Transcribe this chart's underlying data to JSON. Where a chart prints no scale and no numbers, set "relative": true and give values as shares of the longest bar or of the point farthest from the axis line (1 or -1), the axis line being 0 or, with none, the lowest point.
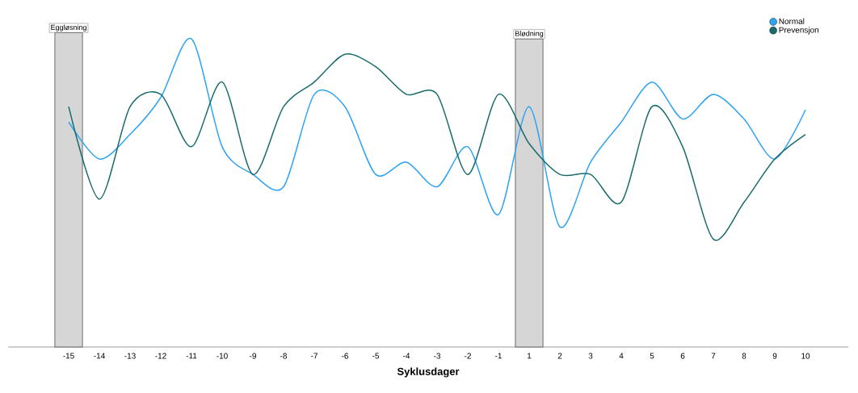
{
  "chart_data": {
    "type": "line",
    "relative": true,
    "xlabel": "Syklusdager",
    "categories": [
      "-15",
      "-14",
      "-13",
      "-12",
      "-11",
      "-10",
      "-9",
      "-8",
      "-7",
      "-6",
      "-5",
      "-4",
      "-3",
      "-2",
      "-1",
      "1",
      "2",
      "3",
      "4",
      "5",
      "6",
      "7",
      "8",
      "9",
      "10"
    ],
    "series": [
      {
        "name": "Normal",
        "color": "#2ea3f2",
        "values": [
          0.73,
          0.61,
          0.69,
          0.81,
          1,
          0.65,
          0.56,
          0.52,
          0.82,
          0.78,
          0.56,
          0.6,
          0.52,
          0.65,
          0.43,
          0.78,
          0.39,
          0.6,
          0.73,
          0.86,
          0.74,
          0.82,
          0.74,
          0.61,
          0.77
        ]
      },
      {
        "name": "Prevensjon",
        "color": "#1a6b6b",
        "values": [
          0.78,
          0.48,
          0.78,
          0.82,
          0.65,
          0.86,
          0.56,
          0.78,
          0.86,
          0.95,
          0.91,
          0.82,
          0.82,
          0.56,
          0.82,
          0.66,
          0.56,
          0.56,
          0.47,
          0.78,
          0.65,
          0.35,
          0.47,
          0.61,
          0.69
        ]
      }
    ],
    "bands": [
      {
        "axis": "x",
        "from": "-15",
        "to": "-15",
        "label": "Eggløsning",
        "color": "#d6d6d6"
      },
      {
        "axis": "x",
        "from": "1",
        "to": "1",
        "label": "Blødning",
        "color": "#d6d6d6"
      }
    ],
    "legend": "top right"
  }
}
